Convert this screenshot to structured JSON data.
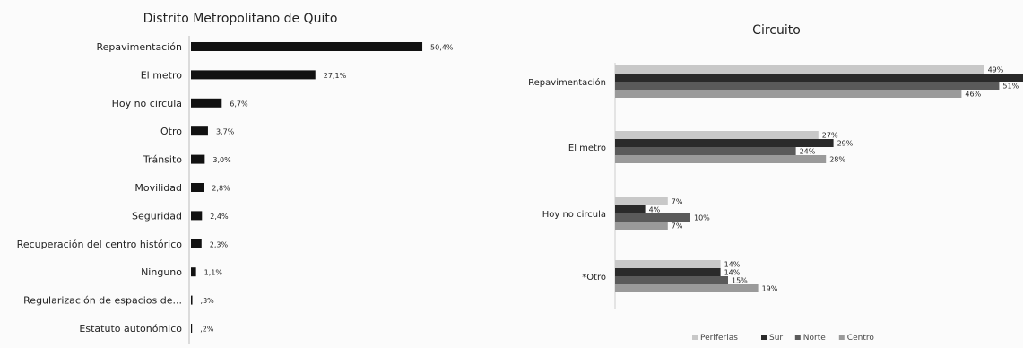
{
  "chart_data": [
    {
      "type": "bar",
      "orientation": "horizontal",
      "title": "Distrito Metropolitano de Quito",
      "categories": [
        "Repavimentación",
        "El metro",
        "Hoy no circula",
        "Otro",
        "Tránsito",
        "Movilidad",
        "Seguridad",
        "Recuperación del centro histórico",
        "Ninguno",
        "Regularización de espacios de...",
        "Estatuto autonómico"
      ],
      "values": [
        50.4,
        27.1,
        6.7,
        3.7,
        3.0,
        2.8,
        2.4,
        2.3,
        1.1,
        0.3,
        0.2
      ],
      "value_labels": [
        "50,4%",
        "27,1%",
        "6,7%",
        "3,7%",
        "3,0%",
        "2,8%",
        "2,4%",
        "2,3%",
        "1,1%",
        ",3%",
        ",2%"
      ],
      "colors": [
        "#111111"
      ],
      "xlabel": "",
      "ylabel": ""
    },
    {
      "type": "bar",
      "orientation": "horizontal",
      "title": "Circuito",
      "categories": [
        "Repavimentación",
        "El metro",
        "Hoy no circula",
        "*Otro"
      ],
      "series": [
        {
          "name": "Periferias",
          "values": [
            49,
            27,
            7,
            14
          ],
          "color": "#c8c8c8"
        },
        {
          "name": "Sur",
          "values": [
            55,
            29,
            4,
            14
          ],
          "color": "#2a2a2a"
        },
        {
          "name": "Norte",
          "values": [
            51,
            24,
            10,
            15
          ],
          "color": "#5a5a5a"
        },
        {
          "name": "Centro",
          "values": [
            46,
            28,
            7,
            19
          ],
          "color": "#9a9a9a"
        }
      ],
      "legend": "bottom",
      "xlabel": "",
      "ylabel": ""
    }
  ]
}
